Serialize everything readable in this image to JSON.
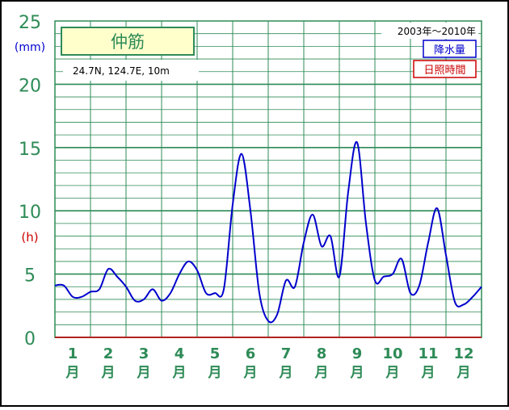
{
  "chart_data": {
    "type": "line",
    "title": "仲筋",
    "location": "24.7N, 124.7E, 10m",
    "period": "2003年～2010年",
    "legend": [
      "降水量",
      "日照時間"
    ],
    "unit_left": "(mm)",
    "unit_right": "(h)",
    "y_ticks": [
      "0",
      "5",
      "10",
      "15",
      "20",
      "25"
    ],
    "ylim": [
      0,
      25
    ],
    "xlim": [
      0.5,
      12.5
    ],
    "month_numbers": [
      "1",
      "2",
      "3",
      "4",
      "5",
      "6",
      "7",
      "8",
      "9",
      "10",
      "11",
      "12"
    ],
    "month_suffix": "月",
    "grid": true,
    "colors": {
      "series": "#0000cc",
      "grid": "#2e8b57",
      "axis_text": "#2e8b57",
      "sunshine": "#cc0000",
      "title_bg": "#ffffcc",
      "baseline": "#b22222"
    },
    "series": [
      {
        "name": "降水量",
        "x": [
          0.5,
          0.75,
          1.0,
          1.25,
          1.5,
          1.75,
          2.0,
          2.25,
          2.5,
          2.75,
          3.0,
          3.25,
          3.5,
          3.75,
          4.0,
          4.25,
          4.5,
          4.75,
          5.0,
          5.25,
          5.5,
          5.75,
          6.0,
          6.25,
          6.5,
          6.75,
          7.0,
          7.25,
          7.5,
          7.75,
          8.0,
          8.25,
          8.5,
          8.75,
          9.0,
          9.25,
          9.5,
          9.75,
          10.0,
          10.25,
          10.5,
          10.75,
          11.0,
          11.25,
          11.5,
          11.75,
          12.0,
          12.25,
          12.5
        ],
        "values": [
          4.1,
          4.1,
          3.2,
          3.2,
          3.6,
          3.8,
          5.4,
          4.8,
          4.0,
          2.9,
          3.0,
          3.8,
          2.9,
          3.5,
          5.0,
          6.0,
          5.3,
          3.5,
          3.5,
          3.8,
          10.5,
          14.5,
          10.0,
          3.5,
          1.3,
          1.8,
          4.5,
          4.0,
          7.5,
          9.7,
          7.2,
          8.0,
          4.8,
          11.5,
          15.4,
          9.0,
          4.5,
          4.8,
          5.0,
          6.2,
          3.5,
          4.1,
          7.5,
          10.2,
          6.5,
          2.8,
          2.6,
          3.2,
          4.0
        ]
      }
    ]
  }
}
